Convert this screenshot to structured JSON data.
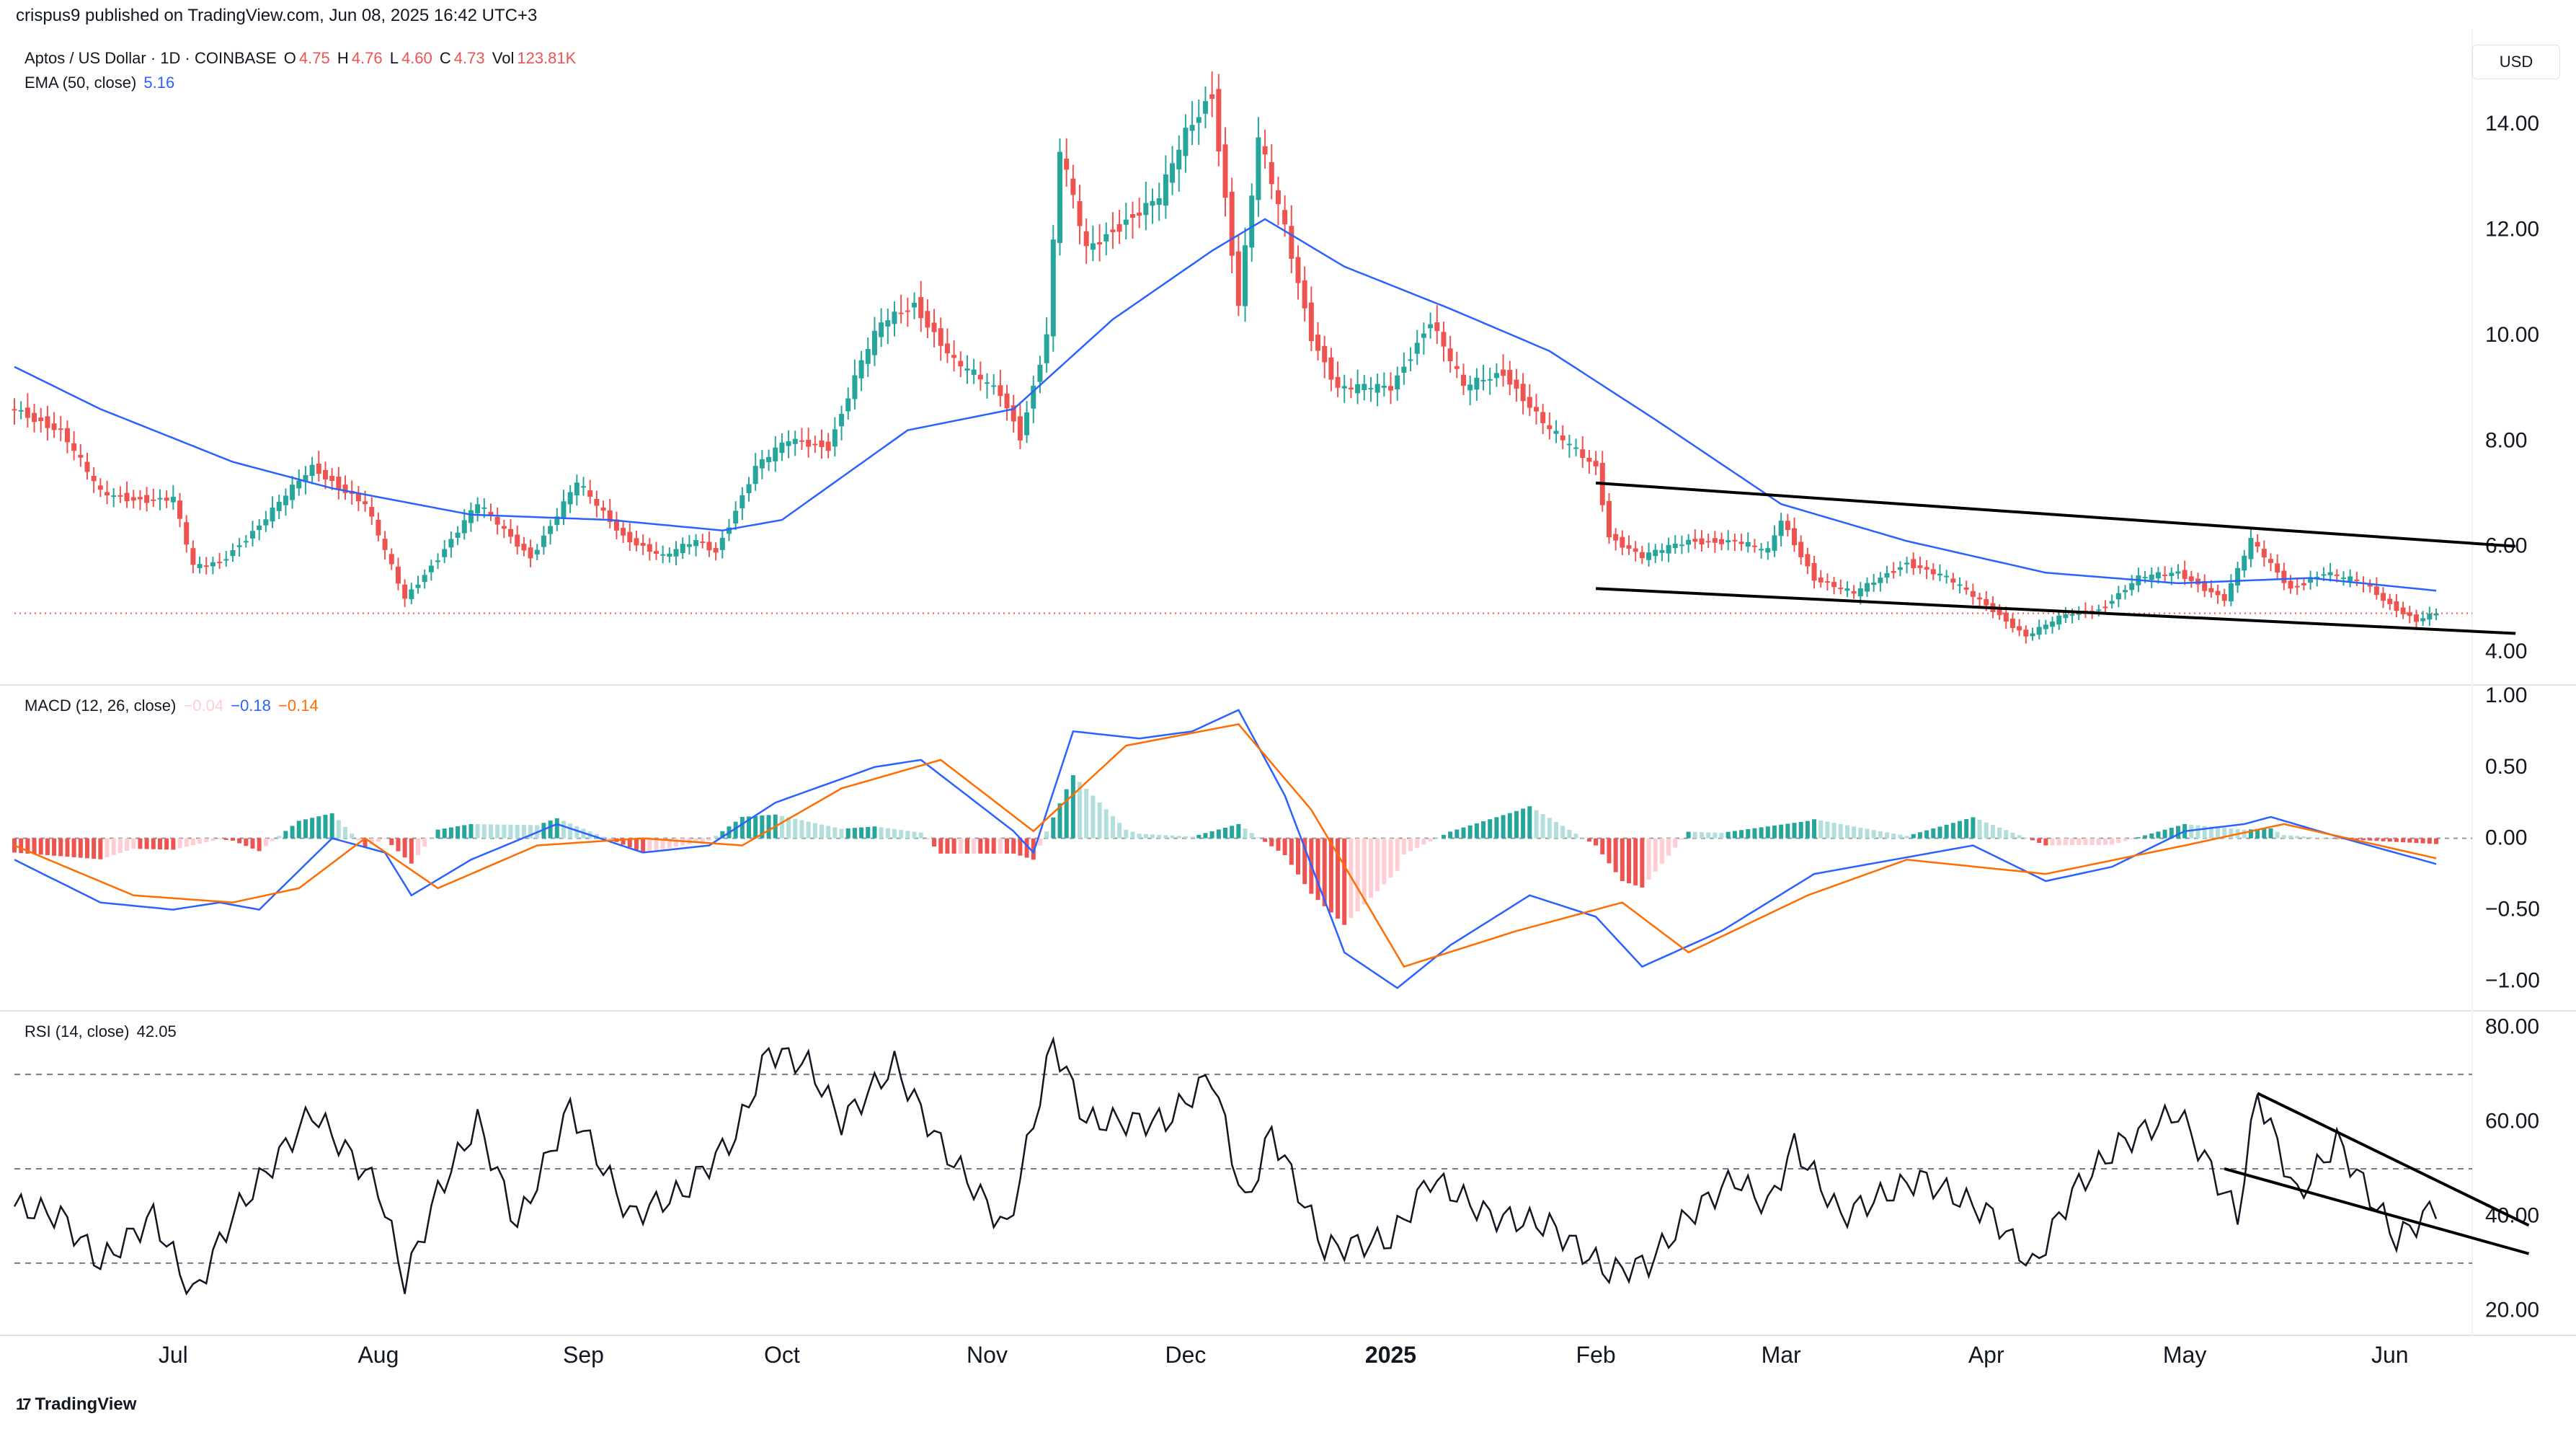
{
  "header": {
    "published": "crispus9 published on TradingView.com, Jun 08, 2025 16:42 UTC+3"
  },
  "main_legend": {
    "symbol": "Aptos / US Dollar · 1D · COINBASE",
    "o_label": "O",
    "o_value": "4.75",
    "h_label": "H",
    "h_value": "4.76",
    "l_label": "L",
    "l_value": "4.60",
    "c_label": "C",
    "c_value": "4.73",
    "vol_label": "Vol",
    "vol_value": "123.81K"
  },
  "ema_legend": {
    "label": "EMA (50, close)",
    "value": "5.16"
  },
  "macd_legend": {
    "label": "MACD (12, 26, close)",
    "hist": "−0.04",
    "macd": "−0.18",
    "signal": "−0.14"
  },
  "rsi_legend": {
    "label": "RSI (14, close)",
    "value": "42.05"
  },
  "currency_button": "USD",
  "brand": {
    "name": "TradingView",
    "logo": "17"
  },
  "colors": {
    "up": "#26a69a",
    "down": "#ef5350",
    "up_light": "#b2dfdb",
    "down_light": "#ffcdd2",
    "ema": "#2962ff",
    "macd": "#2962ff",
    "signal": "#ff6d00",
    "rsi": "#131722",
    "grid_text": "#131722"
  },
  "chart_data": [
    {
      "type": "candlestick",
      "title": "Aptos / US Dollar · 1D · COINBASE",
      "x_range": [
        "2024-06-07",
        "2025-06-08"
      ],
      "ylim": [
        3.4,
        15.6
      ],
      "y_ticks": [
        "14.00",
        "12.00",
        "10.00",
        "8.00",
        "6.00",
        "4.00"
      ],
      "price_anchors": [
        [
          "2024-06-07",
          8.6
        ],
        [
          "2024-06-14",
          8.2
        ],
        [
          "2024-06-20",
          7.0
        ],
        [
          "2024-06-25",
          6.9
        ],
        [
          "2024-07-01",
          6.9
        ],
        [
          "2024-07-04",
          5.6
        ],
        [
          "2024-07-08",
          5.7
        ],
        [
          "2024-07-14",
          6.4
        ],
        [
          "2024-07-22",
          7.5
        ],
        [
          "2024-07-30",
          6.8
        ],
        [
          "2024-08-05",
          5.0
        ],
        [
          "2024-08-10",
          5.8
        ],
        [
          "2024-08-16",
          6.8
        ],
        [
          "2024-08-24",
          5.8
        ],
        [
          "2024-08-31",
          7.2
        ],
        [
          "2024-09-07",
          6.2
        ],
        [
          "2024-09-13",
          5.8
        ],
        [
          "2024-09-18",
          6.1
        ],
        [
          "2024-09-21",
          5.9
        ],
        [
          "2024-09-27",
          7.5
        ],
        [
          "2024-10-02",
          8.0
        ],
        [
          "2024-10-08",
          7.9
        ],
        [
          "2024-10-13",
          9.5
        ],
        [
          "2024-10-16",
          10.2
        ],
        [
          "2024-10-21",
          10.6
        ],
        [
          "2024-10-27",
          9.5
        ],
        [
          "2024-11-03",
          8.9
        ],
        [
          "2024-11-06",
          8.1
        ],
        [
          "2024-11-10",
          10.0
        ],
        [
          "2024-11-12",
          13.5
        ],
        [
          "2024-11-16",
          11.6
        ],
        [
          "2024-11-22",
          12.2
        ],
        [
          "2024-11-27",
          12.6
        ],
        [
          "2024-12-01",
          13.8
        ],
        [
          "2024-12-05",
          14.6
        ],
        [
          "2024-12-09",
          10.6
        ],
        [
          "2024-12-12",
          13.7
        ],
        [
          "2024-12-16",
          12.0
        ],
        [
          "2024-12-20",
          10.0
        ],
        [
          "2024-12-24",
          9.0
        ],
        [
          "2025-01-01",
          9.0
        ],
        [
          "2025-01-07",
          10.3
        ],
        [
          "2025-01-12",
          9.0
        ],
        [
          "2025-01-18",
          9.3
        ],
        [
          "2025-01-25",
          8.2
        ],
        [
          "2025-02-01",
          7.5
        ],
        [
          "2025-02-03",
          6.2
        ],
        [
          "2025-02-08",
          5.8
        ],
        [
          "2025-02-15",
          6.1
        ],
        [
          "2025-02-22",
          6.1
        ],
        [
          "2025-02-27",
          5.9
        ],
        [
          "2025-03-01",
          6.5
        ],
        [
          "2025-03-06",
          5.4
        ],
        [
          "2025-03-12",
          5.1
        ],
        [
          "2025-03-20",
          5.7
        ],
        [
          "2025-03-26",
          5.4
        ],
        [
          "2025-04-02",
          4.8
        ],
        [
          "2025-04-07",
          4.3
        ],
        [
          "2025-04-13",
          4.7
        ],
        [
          "2025-04-18",
          4.8
        ],
        [
          "2025-04-24",
          5.4
        ],
        [
          "2025-04-30",
          5.5
        ],
        [
          "2025-05-07",
          5.0
        ],
        [
          "2025-05-11",
          6.1
        ],
        [
          "2025-05-17",
          5.2
        ],
        [
          "2025-05-22",
          5.5
        ],
        [
          "2025-05-28",
          5.3
        ],
        [
          "2025-06-01",
          4.9
        ],
        [
          "2025-06-05",
          4.6
        ],
        [
          "2025-06-08",
          4.73
        ]
      ],
      "ema_anchors": [
        [
          "2024-06-07",
          9.4
        ],
        [
          "2024-06-20",
          8.6
        ],
        [
          "2024-07-10",
          7.6
        ],
        [
          "2024-07-25",
          7.1
        ],
        [
          "2024-08-15",
          6.6
        ],
        [
          "2024-09-05",
          6.5
        ],
        [
          "2024-09-22",
          6.3
        ],
        [
          "2024-10-01",
          6.5
        ],
        [
          "2024-10-20",
          8.2
        ],
        [
          "2024-11-05",
          8.6
        ],
        [
          "2024-11-20",
          10.3
        ],
        [
          "2024-12-05",
          11.6
        ],
        [
          "2024-12-13",
          12.2
        ],
        [
          "2024-12-25",
          11.3
        ],
        [
          "2025-01-10",
          10.5
        ],
        [
          "2025-01-25",
          9.7
        ],
        [
          "2025-02-10",
          8.4
        ],
        [
          "2025-03-01",
          6.8
        ],
        [
          "2025-03-20",
          6.1
        ],
        [
          "2025-04-10",
          5.5
        ],
        [
          "2025-04-30",
          5.3
        ],
        [
          "2025-05-20",
          5.4
        ],
        [
          "2025-06-08",
          5.16
        ]
      ],
      "current_price": 4.73,
      "trendlines": [
        {
          "from": [
            "2025-02-01",
            7.2
          ],
          "to": [
            "2025-06-20",
            6.0
          ]
        },
        {
          "from": [
            "2025-02-01",
            5.2
          ],
          "to": [
            "2025-06-20",
            4.35
          ]
        }
      ]
    },
    {
      "type": "macd",
      "title": "MACD (12, 26, close)",
      "ylim": [
        -1.2,
        1.05
      ],
      "y_ticks": [
        "1.00",
        "0.50",
        "0.00",
        "−0.50",
        "−1.00"
      ],
      "macd_anchors": [
        [
          "2024-06-07",
          -0.15
        ],
        [
          "2024-06-20",
          -0.45
        ],
        [
          "2024-07-01",
          -0.5
        ],
        [
          "2024-07-08",
          -0.45
        ],
        [
          "2024-07-14",
          -0.5
        ],
        [
          "2024-07-25",
          0.0
        ],
        [
          "2024-08-02",
          -0.1
        ],
        [
          "2024-08-06",
          -0.4
        ],
        [
          "2024-08-15",
          -0.15
        ],
        [
          "2024-08-28",
          0.1
        ],
        [
          "2024-09-10",
          -0.1
        ],
        [
          "2024-09-20",
          -0.05
        ],
        [
          "2024-09-30",
          0.25
        ],
        [
          "2024-10-15",
          0.5
        ],
        [
          "2024-10-22",
          0.55
        ],
        [
          "2024-11-05",
          0.05
        ],
        [
          "2024-11-08",
          -0.1
        ],
        [
          "2024-11-14",
          0.75
        ],
        [
          "2024-11-24",
          0.7
        ],
        [
          "2024-12-02",
          0.75
        ],
        [
          "2024-12-09",
          0.9
        ],
        [
          "2024-12-16",
          0.3
        ],
        [
          "2024-12-25",
          -0.8
        ],
        [
          "2025-01-02",
          -1.05
        ],
        [
          "2025-01-10",
          -0.75
        ],
        [
          "2025-01-22",
          -0.4
        ],
        [
          "2025-02-01",
          -0.55
        ],
        [
          "2025-02-08",
          -0.9
        ],
        [
          "2025-02-20",
          -0.65
        ],
        [
          "2025-03-06",
          -0.25
        ],
        [
          "2025-03-18",
          -0.15
        ],
        [
          "2025-03-30",
          -0.05
        ],
        [
          "2025-04-10",
          -0.3
        ],
        [
          "2025-04-20",
          -0.2
        ],
        [
          "2025-05-01",
          0.05
        ],
        [
          "2025-05-10",
          0.1
        ],
        [
          "2025-05-14",
          0.15
        ],
        [
          "2025-05-25",
          0.0
        ],
        [
          "2025-06-08",
          -0.18
        ]
      ],
      "signal_anchors": [
        [
          "2024-06-07",
          -0.05
        ],
        [
          "2024-06-25",
          -0.4
        ],
        [
          "2024-07-10",
          -0.45
        ],
        [
          "2024-07-20",
          -0.35
        ],
        [
          "2024-07-30",
          0.0
        ],
        [
          "2024-08-10",
          -0.35
        ],
        [
          "2024-08-25",
          -0.05
        ],
        [
          "2024-09-10",
          0.0
        ],
        [
          "2024-09-25",
          -0.05
        ],
        [
          "2024-10-10",
          0.35
        ],
        [
          "2024-10-25",
          0.55
        ],
        [
          "2024-11-08",
          0.05
        ],
        [
          "2024-11-22",
          0.65
        ],
        [
          "2024-12-09",
          0.8
        ],
        [
          "2024-12-20",
          0.2
        ],
        [
          "2025-01-03",
          -0.9
        ],
        [
          "2025-01-20",
          -0.65
        ],
        [
          "2025-02-05",
          -0.45
        ],
        [
          "2025-02-15",
          -0.8
        ],
        [
          "2025-03-05",
          -0.4
        ],
        [
          "2025-03-20",
          -0.15
        ],
        [
          "2025-04-10",
          -0.25
        ],
        [
          "2025-05-01",
          -0.05
        ],
        [
          "2025-05-16",
          0.1
        ],
        [
          "2025-06-08",
          -0.14
        ]
      ]
    },
    {
      "type": "line",
      "title": "RSI (14, close)",
      "ylim": [
        15,
        83
      ],
      "y_ticks": [
        "80.00",
        "60.00",
        "40.00",
        "20.00"
      ],
      "bands": [
        70,
        50,
        30
      ],
      "rsi_anchors": [
        [
          "2024-06-07",
          42
        ],
        [
          "2024-06-14",
          40
        ],
        [
          "2024-06-20",
          30
        ],
        [
          "2024-06-28",
          40
        ],
        [
          "2024-07-04",
          23
        ],
        [
          "2024-07-10",
          40
        ],
        [
          "2024-07-22",
          62
        ],
        [
          "2024-08-01",
          46
        ],
        [
          "2024-08-05",
          26
        ],
        [
          "2024-08-10",
          45
        ],
        [
          "2024-08-16",
          60
        ],
        [
          "2024-08-22",
          38
        ],
        [
          "2024-08-30",
          63
        ],
        [
          "2024-09-08",
          40
        ],
        [
          "2024-09-16",
          45
        ],
        [
          "2024-09-24",
          57
        ],
        [
          "2024-09-29",
          75
        ],
        [
          "2024-10-05",
          72
        ],
        [
          "2024-10-10",
          60
        ],
        [
          "2024-10-18",
          72
        ],
        [
          "2024-10-25",
          55
        ],
        [
          "2024-11-04",
          37
        ],
        [
          "2024-11-11",
          77
        ],
        [
          "2024-11-16",
          60
        ],
        [
          "2024-11-28",
          60
        ],
        [
          "2024-12-05",
          70
        ],
        [
          "2024-12-10",
          42
        ],
        [
          "2024-12-14",
          58
        ],
        [
          "2024-12-22",
          33
        ],
        [
          "2025-01-01",
          35
        ],
        [
          "2025-01-07",
          48
        ],
        [
          "2025-01-16",
          40
        ],
        [
          "2025-01-25",
          38
        ],
        [
          "2025-02-03",
          28
        ],
        [
          "2025-02-09",
          30
        ],
        [
          "2025-02-15",
          40
        ],
        [
          "2025-02-22",
          48
        ],
        [
          "2025-02-27",
          42
        ],
        [
          "2025-03-03",
          55
        ],
        [
          "2025-03-10",
          40
        ],
        [
          "2025-03-22",
          48
        ],
        [
          "2025-04-02",
          40
        ],
        [
          "2025-04-08",
          29
        ],
        [
          "2025-04-14",
          45
        ],
        [
          "2025-04-21",
          55
        ],
        [
          "2025-04-30",
          62
        ],
        [
          "2025-05-09",
          40
        ],
        [
          "2025-05-12",
          66
        ],
        [
          "2025-05-18",
          44
        ],
        [
          "2025-05-24",
          56
        ],
        [
          "2025-06-02",
          35
        ],
        [
          "2025-06-08",
          42.05
        ]
      ],
      "trendlines": [
        {
          "from": [
            "2025-05-12",
            66
          ],
          "to": [
            "2025-06-22",
            38
          ]
        },
        {
          "from": [
            "2025-05-07",
            50
          ],
          "to": [
            "2025-06-22",
            32
          ]
        }
      ]
    }
  ],
  "x_axis": {
    "labels": [
      {
        "date": "2024-07-01",
        "text": "Jul",
        "bold": false
      },
      {
        "date": "2024-08-01",
        "text": "Aug",
        "bold": false
      },
      {
        "date": "2024-09-01",
        "text": "Sep",
        "bold": false
      },
      {
        "date": "2024-10-01",
        "text": "Oct",
        "bold": false
      },
      {
        "date": "2024-11-01",
        "text": "Nov",
        "bold": false
      },
      {
        "date": "2024-12-01",
        "text": "Dec",
        "bold": false
      },
      {
        "date": "2025-01-01",
        "text": "2025",
        "bold": true
      },
      {
        "date": "2025-02-01",
        "text": "Feb",
        "bold": false
      },
      {
        "date": "2025-03-01",
        "text": "Mar",
        "bold": false
      },
      {
        "date": "2025-04-01",
        "text": "Apr",
        "bold": false
      },
      {
        "date": "2025-05-01",
        "text": "May",
        "bold": false
      },
      {
        "date": "2025-06-01",
        "text": "Jun",
        "bold": false
      }
    ]
  }
}
